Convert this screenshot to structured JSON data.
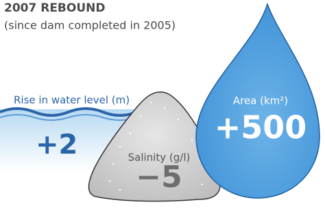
{
  "header": {
    "title": "2007 REBOUND",
    "subtitle": "(since dam completed in 2005)"
  },
  "water_level": {
    "label": "Rise in water level (m)",
    "value": "+2"
  },
  "salinity": {
    "label": "Salinity (g/l)",
    "value": "−5"
  },
  "area": {
    "label": "Area (km²)",
    "value": "+500"
  }
}
